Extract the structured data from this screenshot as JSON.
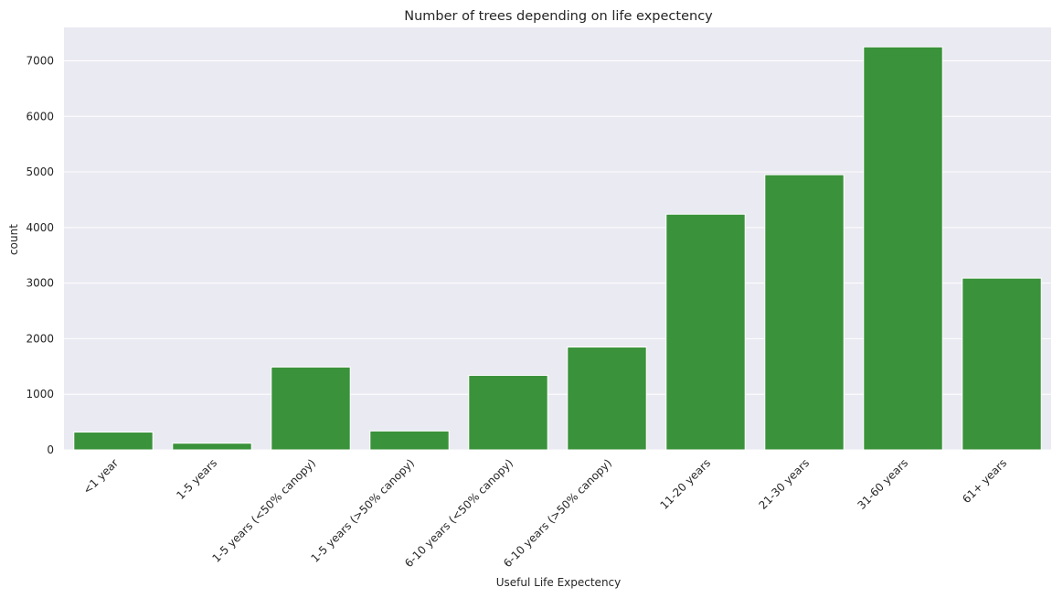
{
  "chart_data": {
    "type": "bar",
    "title": "Number of trees depending on life expectency",
    "xlabel": "Useful Life Expectency",
    "ylabel": "count",
    "categories": [
      "<1 year",
      "1-5 years",
      "1-5 years (<50% canopy)",
      "1-5 years (>50% canopy)",
      "6-10 years (<50% canopy)",
      "6-10 years (>50% canopy)",
      "11-20 years",
      "21-30 years",
      "31-60 years",
      "61+ years"
    ],
    "values": [
      320,
      120,
      1490,
      340,
      1340,
      1850,
      4240,
      4950,
      7250,
      3090
    ],
    "ylim": [
      0,
      7600
    ],
    "yticks": [
      0,
      1000,
      2000,
      3000,
      4000,
      5000,
      6000,
      7000
    ],
    "ytick_labels": [
      "0",
      "1000",
      "2000",
      "3000",
      "4000",
      "5000",
      "6000",
      "7000"
    ],
    "grid": true,
    "colors": {
      "bar": "#3a923a",
      "plot_background": "#eaeaf2",
      "grid": "#ffffff",
      "text": "#262626"
    }
  }
}
